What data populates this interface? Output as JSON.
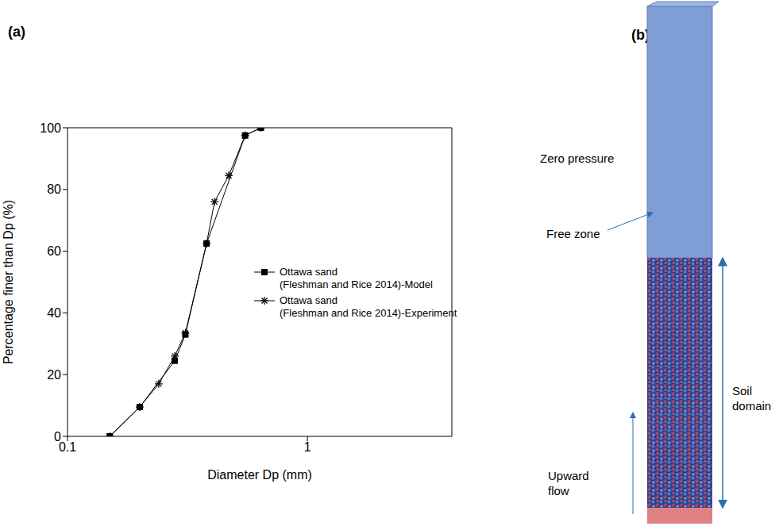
{
  "chart_data": {
    "type": "line",
    "title": "(a)",
    "x_label": "Diameter Dp (mm)",
    "y_label": "Percentage finer than Dp (%)",
    "log": "x",
    "xlim": [
      0.1,
      4
    ],
    "xticks": [
      0.1,
      1
    ],
    "ylim": [
      0,
      100
    ],
    "yticks": [
      0,
      20,
      40,
      60,
      80,
      100
    ],
    "grid": false,
    "legend": "right",
    "series": [
      {
        "name": "Ottawa sand (Fleshman and Rice 2014)-Model",
        "color": "#000000",
        "marker": "square",
        "line_style": "solid",
        "x": [
          0.15,
          0.2,
          0.28,
          0.31,
          0.38,
          0.55,
          0.64
        ],
        "values": [
          0,
          9.5,
          24.5,
          33,
          62.5,
          97.5,
          100
        ]
      },
      {
        "name": "Ottawa sand (Fleshman and Rice 2014)-Experiment",
        "color": "#000000",
        "marker": "star",
        "line_style": "solid",
        "x": [
          0.15,
          0.2,
          0.24,
          0.28,
          0.31,
          0.38,
          0.41,
          0.47,
          0.55,
          0.64
        ],
        "values": [
          0,
          9.5,
          17,
          26,
          33.5,
          62.5,
          76,
          84.5,
          97.5,
          100
        ]
      }
    ]
  },
  "diagram": {
    "label": "(b)",
    "texts": {
      "top": "Zero pressure",
      "free": "Free zone",
      "soil": "Soil domain",
      "flow": "Upward flow"
    }
  }
}
